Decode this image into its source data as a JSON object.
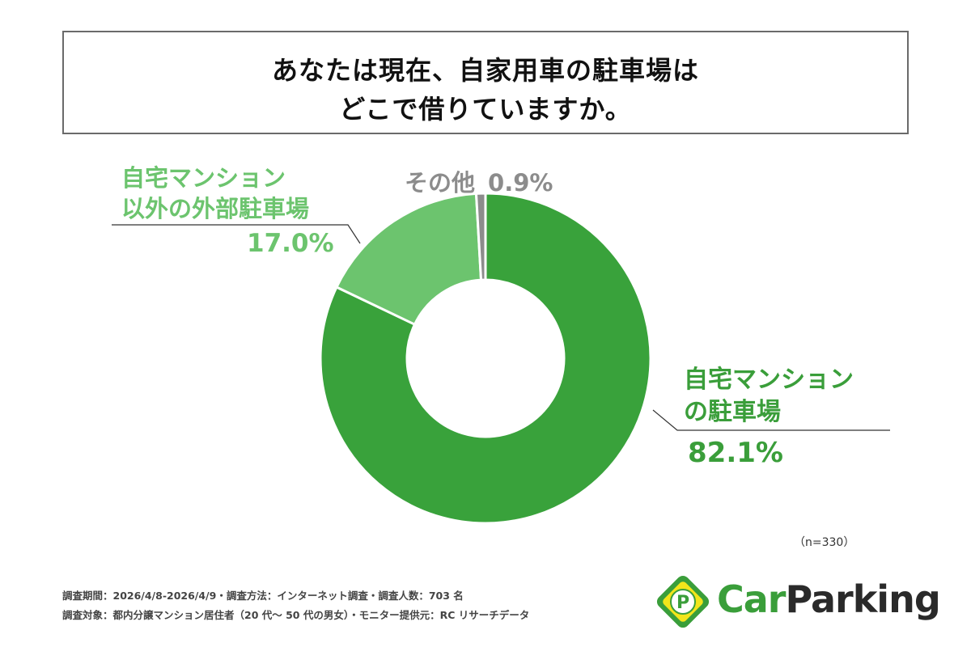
{
  "title": {
    "line1": "あなたは現在、自家用車の駐車場は",
    "line2": "どこで借りていますか。"
  },
  "colors": {
    "main_segment": "#39a23b",
    "secondary_segment": "#6cc46e",
    "other_segment": "#8c8c8c",
    "leader": "#333333"
  },
  "chart_data": {
    "type": "pie",
    "donut": true,
    "slices": [
      {
        "label_line1": "自宅マンション",
        "label_line2": "の駐車場",
        "value": 82.1,
        "display": "82.1%",
        "color": "#39a23b"
      },
      {
        "label_line1": "自宅マンション",
        "label_line2": "以外の外部駐車場",
        "value": 17.0,
        "display": "17.0%",
        "color": "#6cc46e"
      },
      {
        "label_line1": "その他",
        "label_line2": "",
        "value": 0.9,
        "display": "0.9%",
        "color": "#8c8c8c"
      }
    ]
  },
  "sample_size": "（n=330）",
  "footnotes": {
    "line1": "調査期間：2026/4/8-2026/4/9・調査方法：インターネット調査・調査人数：703 名",
    "line2": "調査対象：都内分譲マンション居住者（20 代〜 50 代の男女）・モニター提供元：RC リサーチデータ"
  },
  "logo": {
    "text_car": "Car",
    "text_parking": "Parking",
    "badge_letter": "P"
  }
}
